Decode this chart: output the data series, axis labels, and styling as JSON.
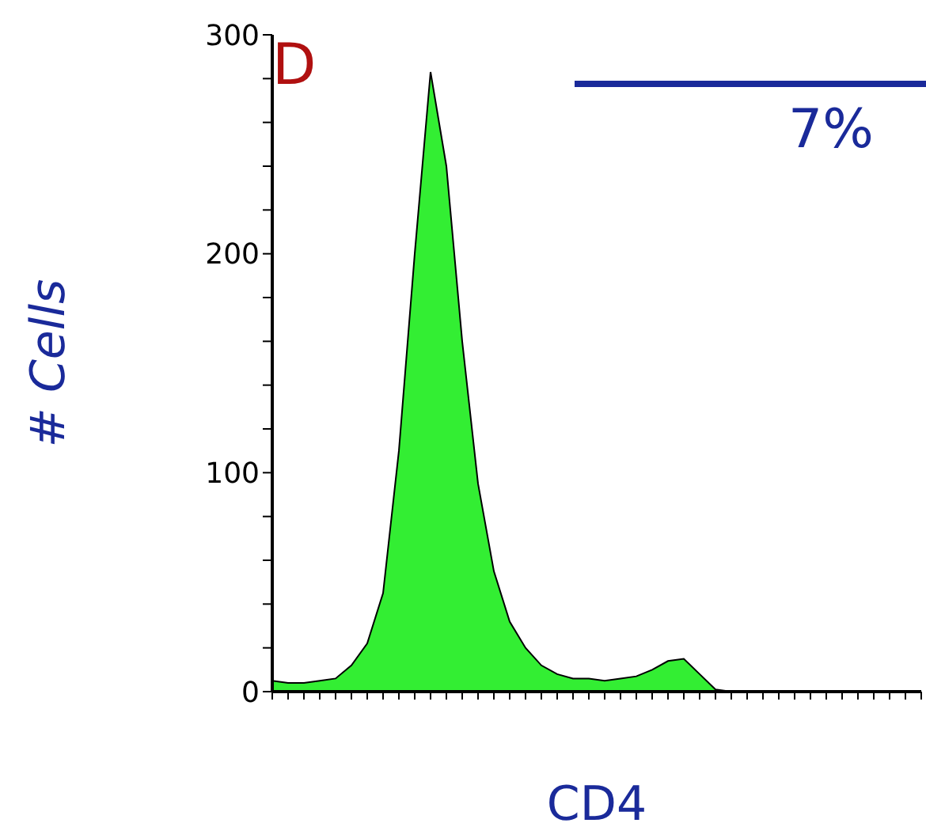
{
  "chart_data": {
    "type": "area",
    "xlabel": "CD4",
    "ylabel": "# Cells",
    "categories": [
      null,
      null,
      null,
      null,
      null,
      null,
      null,
      null,
      null,
      null,
      null,
      null,
      null,
      null,
      null,
      null,
      null,
      null,
      null,
      null,
      null,
      null,
      null,
      null,
      null,
      null,
      null,
      null,
      null,
      null,
      null,
      null,
      null,
      null,
      null,
      null,
      null,
      null,
      null,
      null,
      null,
      null
    ],
    "series": [
      {
        "color": "#33ee33",
        "values": [
          5,
          4,
          4,
          5,
          6,
          12,
          22,
          45,
          110,
          200,
          283,
          240,
          160,
          95,
          55,
          32,
          20,
          12,
          8,
          6,
          6,
          5,
          6,
          7,
          10,
          14,
          15,
          8,
          1,
          0,
          0,
          0,
          0,
          0,
          0,
          0,
          0,
          0,
          0,
          0,
          0,
          0
        ]
      }
    ],
    "ylim": [
      0,
      300
    ],
    "yticks": [
      0,
      {
        "value": 20,
        "label": null
      },
      {
        "value": 40,
        "label": null
      },
      {
        "value": 60,
        "label": null
      },
      {
        "value": 80,
        "label": null
      },
      100,
      {
        "value": 120,
        "label": null
      },
      {
        "value": 140,
        "label": null
      },
      {
        "value": 160,
        "label": null
      },
      {
        "value": 180,
        "label": null
      },
      200,
      {
        "value": 220,
        "label": null
      },
      {
        "value": 240,
        "label": null
      },
      {
        "value": 260,
        "label": null
      },
      {
        "value": 280,
        "label": null
      },
      300
    ],
    "annotations": [
      "D",
      "7%"
    ],
    "grid": false
  }
}
